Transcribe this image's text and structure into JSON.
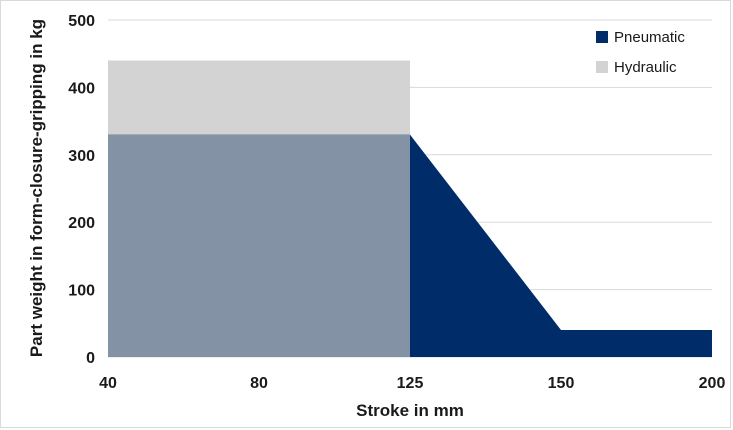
{
  "chart_data": {
    "type": "area",
    "xlabel": "Stroke in mm",
    "ylabel": "Part weight in form-closure-gripping in kg",
    "x_tick_labels": [
      "40",
      "80",
      "125",
      "150",
      "200"
    ],
    "y_ticks": [
      0,
      100,
      200,
      300,
      400,
      500
    ],
    "ylim": [
      0,
      500
    ],
    "grid": true,
    "legend_position": "top-right",
    "series": [
      {
        "name": "Pneumatic",
        "color": "#002d6a",
        "points": [
          {
            "x": "40",
            "y": 330
          },
          {
            "x": "125",
            "y": 330
          },
          {
            "x": "150",
            "y": 40
          },
          {
            "x": "200",
            "y": 40
          }
        ]
      },
      {
        "name": "Hydraulic",
        "color": "#d3d3d3",
        "points": [
          {
            "x": "40",
            "y": 440
          },
          {
            "x": "125",
            "y": 440
          }
        ]
      }
    ],
    "overlap_color": "#8392a5"
  }
}
